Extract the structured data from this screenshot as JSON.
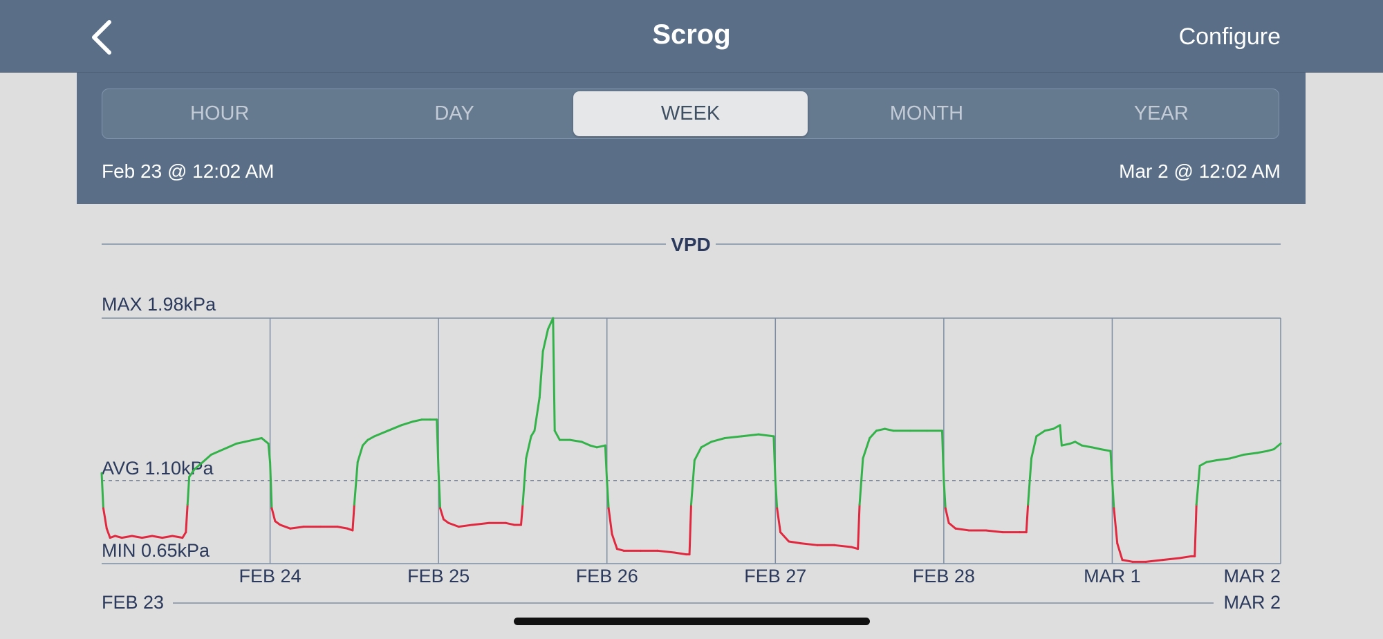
{
  "header": {
    "title": "Scrog",
    "configure_label": "Configure"
  },
  "range_tabs": [
    {
      "label": "HOUR",
      "active": false
    },
    {
      "label": "DAY",
      "active": false
    },
    {
      "label": "WEEK",
      "active": true
    },
    {
      "label": "MONTH",
      "active": false
    },
    {
      "label": "YEAR",
      "active": false
    }
  ],
  "range": {
    "start": "Feb 23 @ 12:02 AM",
    "end": "Mar 2 @ 12:02 AM"
  },
  "colors": {
    "header_bg": "#5a6f87",
    "in_range": "#34b24a",
    "out_of_range": "#e0283f",
    "text": "#2b3a5c"
  },
  "chart_data": {
    "type": "line",
    "title": "VPD",
    "unit": "kPa",
    "max_label": "MAX 1.98kPa",
    "avg_label": "AVG 1.10kPa",
    "min_label": "MIN 0.65kPa",
    "ylim": [
      0.65,
      1.98
    ],
    "avg": 1.1,
    "green_threshold": 0.97,
    "xlim": [
      0,
      7
    ],
    "x_ticks": [
      {
        "x": 1,
        "label": "FEB 24"
      },
      {
        "x": 2,
        "label": "FEB 25"
      },
      {
        "x": 3,
        "label": "FEB 26"
      },
      {
        "x": 4,
        "label": "FEB 27"
      },
      {
        "x": 5,
        "label": "FEB 28"
      },
      {
        "x": 6,
        "label": "MAR 1"
      },
      {
        "x": 7,
        "label": "MAR 2"
      }
    ],
    "bottom_range_labels": [
      "FEB 23",
      "MAR 2"
    ],
    "series": [
      {
        "values": [
          [
            0.0,
            1.14
          ],
          [
            0.01,
            0.95
          ],
          [
            0.03,
            0.84
          ],
          [
            0.05,
            0.79
          ],
          [
            0.08,
            0.8
          ],
          [
            0.12,
            0.79
          ],
          [
            0.18,
            0.8
          ],
          [
            0.24,
            0.79
          ],
          [
            0.3,
            0.8
          ],
          [
            0.36,
            0.79
          ],
          [
            0.42,
            0.8
          ],
          [
            0.48,
            0.79
          ],
          [
            0.5,
            0.82
          ],
          [
            0.51,
            0.97
          ],
          [
            0.52,
            1.12
          ],
          [
            0.55,
            1.16
          ],
          [
            0.6,
            1.2
          ],
          [
            0.65,
            1.24
          ],
          [
            0.7,
            1.26
          ],
          [
            0.75,
            1.28
          ],
          [
            0.8,
            1.3
          ],
          [
            0.85,
            1.31
          ],
          [
            0.9,
            1.32
          ],
          [
            0.95,
            1.33
          ],
          [
            0.99,
            1.3
          ],
          [
            1.0,
            1.2
          ],
          [
            1.01,
            0.95
          ],
          [
            1.03,
            0.88
          ],
          [
            1.06,
            0.86
          ],
          [
            1.12,
            0.84
          ],
          [
            1.2,
            0.85
          ],
          [
            1.3,
            0.85
          ],
          [
            1.4,
            0.85
          ],
          [
            1.46,
            0.84
          ],
          [
            1.49,
            0.83
          ],
          [
            1.5,
            0.97
          ],
          [
            1.52,
            1.2
          ],
          [
            1.55,
            1.29
          ],
          [
            1.58,
            1.32
          ],
          [
            1.62,
            1.34
          ],
          [
            1.7,
            1.37
          ],
          [
            1.78,
            1.4
          ],
          [
            1.85,
            1.42
          ],
          [
            1.9,
            1.43
          ],
          [
            1.95,
            1.43
          ],
          [
            1.99,
            1.43
          ],
          [
            2.0,
            1.15
          ],
          [
            2.01,
            0.95
          ],
          [
            2.03,
            0.89
          ],
          [
            2.06,
            0.87
          ],
          [
            2.12,
            0.85
          ],
          [
            2.2,
            0.86
          ],
          [
            2.3,
            0.87
          ],
          [
            2.4,
            0.87
          ],
          [
            2.45,
            0.86
          ],
          [
            2.49,
            0.86
          ],
          [
            2.5,
            0.97
          ],
          [
            2.52,
            1.22
          ],
          [
            2.55,
            1.34
          ],
          [
            2.57,
            1.37
          ],
          [
            2.6,
            1.55
          ],
          [
            2.62,
            1.8
          ],
          [
            2.65,
            1.92
          ],
          [
            2.68,
            1.98
          ],
          [
            2.69,
            1.37
          ],
          [
            2.72,
            1.32
          ],
          [
            2.78,
            1.32
          ],
          [
            2.85,
            1.31
          ],
          [
            2.9,
            1.29
          ],
          [
            2.94,
            1.28
          ],
          [
            2.99,
            1.29
          ],
          [
            3.0,
            1.1
          ],
          [
            3.01,
            0.95
          ],
          [
            3.03,
            0.81
          ],
          [
            3.06,
            0.73
          ],
          [
            3.1,
            0.72
          ],
          [
            3.2,
            0.72
          ],
          [
            3.3,
            0.72
          ],
          [
            3.4,
            0.71
          ],
          [
            3.47,
            0.7
          ],
          [
            3.49,
            0.7
          ],
          [
            3.5,
            0.97
          ],
          [
            3.52,
            1.21
          ],
          [
            3.56,
            1.28
          ],
          [
            3.62,
            1.31
          ],
          [
            3.7,
            1.33
          ],
          [
            3.8,
            1.34
          ],
          [
            3.9,
            1.35
          ],
          [
            3.99,
            1.34
          ],
          [
            4.0,
            1.1
          ],
          [
            4.01,
            0.95
          ],
          [
            4.03,
            0.82
          ],
          [
            4.08,
            0.77
          ],
          [
            4.15,
            0.76
          ],
          [
            4.25,
            0.75
          ],
          [
            4.35,
            0.75
          ],
          [
            4.45,
            0.74
          ],
          [
            4.49,
            0.73
          ],
          [
            4.5,
            0.97
          ],
          [
            4.52,
            1.22
          ],
          [
            4.56,
            1.33
          ],
          [
            4.6,
            1.37
          ],
          [
            4.65,
            1.38
          ],
          [
            4.7,
            1.37
          ],
          [
            4.8,
            1.37
          ],
          [
            4.9,
            1.37
          ],
          [
            4.99,
            1.37
          ],
          [
            5.0,
            1.1
          ],
          [
            5.01,
            0.95
          ],
          [
            5.03,
            0.87
          ],
          [
            5.07,
            0.84
          ],
          [
            5.15,
            0.83
          ],
          [
            5.25,
            0.83
          ],
          [
            5.35,
            0.82
          ],
          [
            5.45,
            0.82
          ],
          [
            5.49,
            0.82
          ],
          [
            5.5,
            0.97
          ],
          [
            5.52,
            1.22
          ],
          [
            5.55,
            1.34
          ],
          [
            5.6,
            1.37
          ],
          [
            5.65,
            1.38
          ],
          [
            5.69,
            1.4
          ],
          [
            5.7,
            1.29
          ],
          [
            5.75,
            1.3
          ],
          [
            5.78,
            1.31
          ],
          [
            5.82,
            1.29
          ],
          [
            5.88,
            1.28
          ],
          [
            5.93,
            1.27
          ],
          [
            5.99,
            1.26
          ],
          [
            6.0,
            1.1
          ],
          [
            6.01,
            0.95
          ],
          [
            6.03,
            0.76
          ],
          [
            6.06,
            0.67
          ],
          [
            6.12,
            0.66
          ],
          [
            6.2,
            0.66
          ],
          [
            6.3,
            0.67
          ],
          [
            6.4,
            0.68
          ],
          [
            6.47,
            0.69
          ],
          [
            6.49,
            0.69
          ],
          [
            6.5,
            0.97
          ],
          [
            6.52,
            1.18
          ],
          [
            6.56,
            1.2
          ],
          [
            6.62,
            1.21
          ],
          [
            6.7,
            1.22
          ],
          [
            6.78,
            1.24
          ],
          [
            6.86,
            1.25
          ],
          [
            6.92,
            1.26
          ],
          [
            6.96,
            1.27
          ],
          [
            7.0,
            1.3
          ]
        ]
      }
    ]
  }
}
